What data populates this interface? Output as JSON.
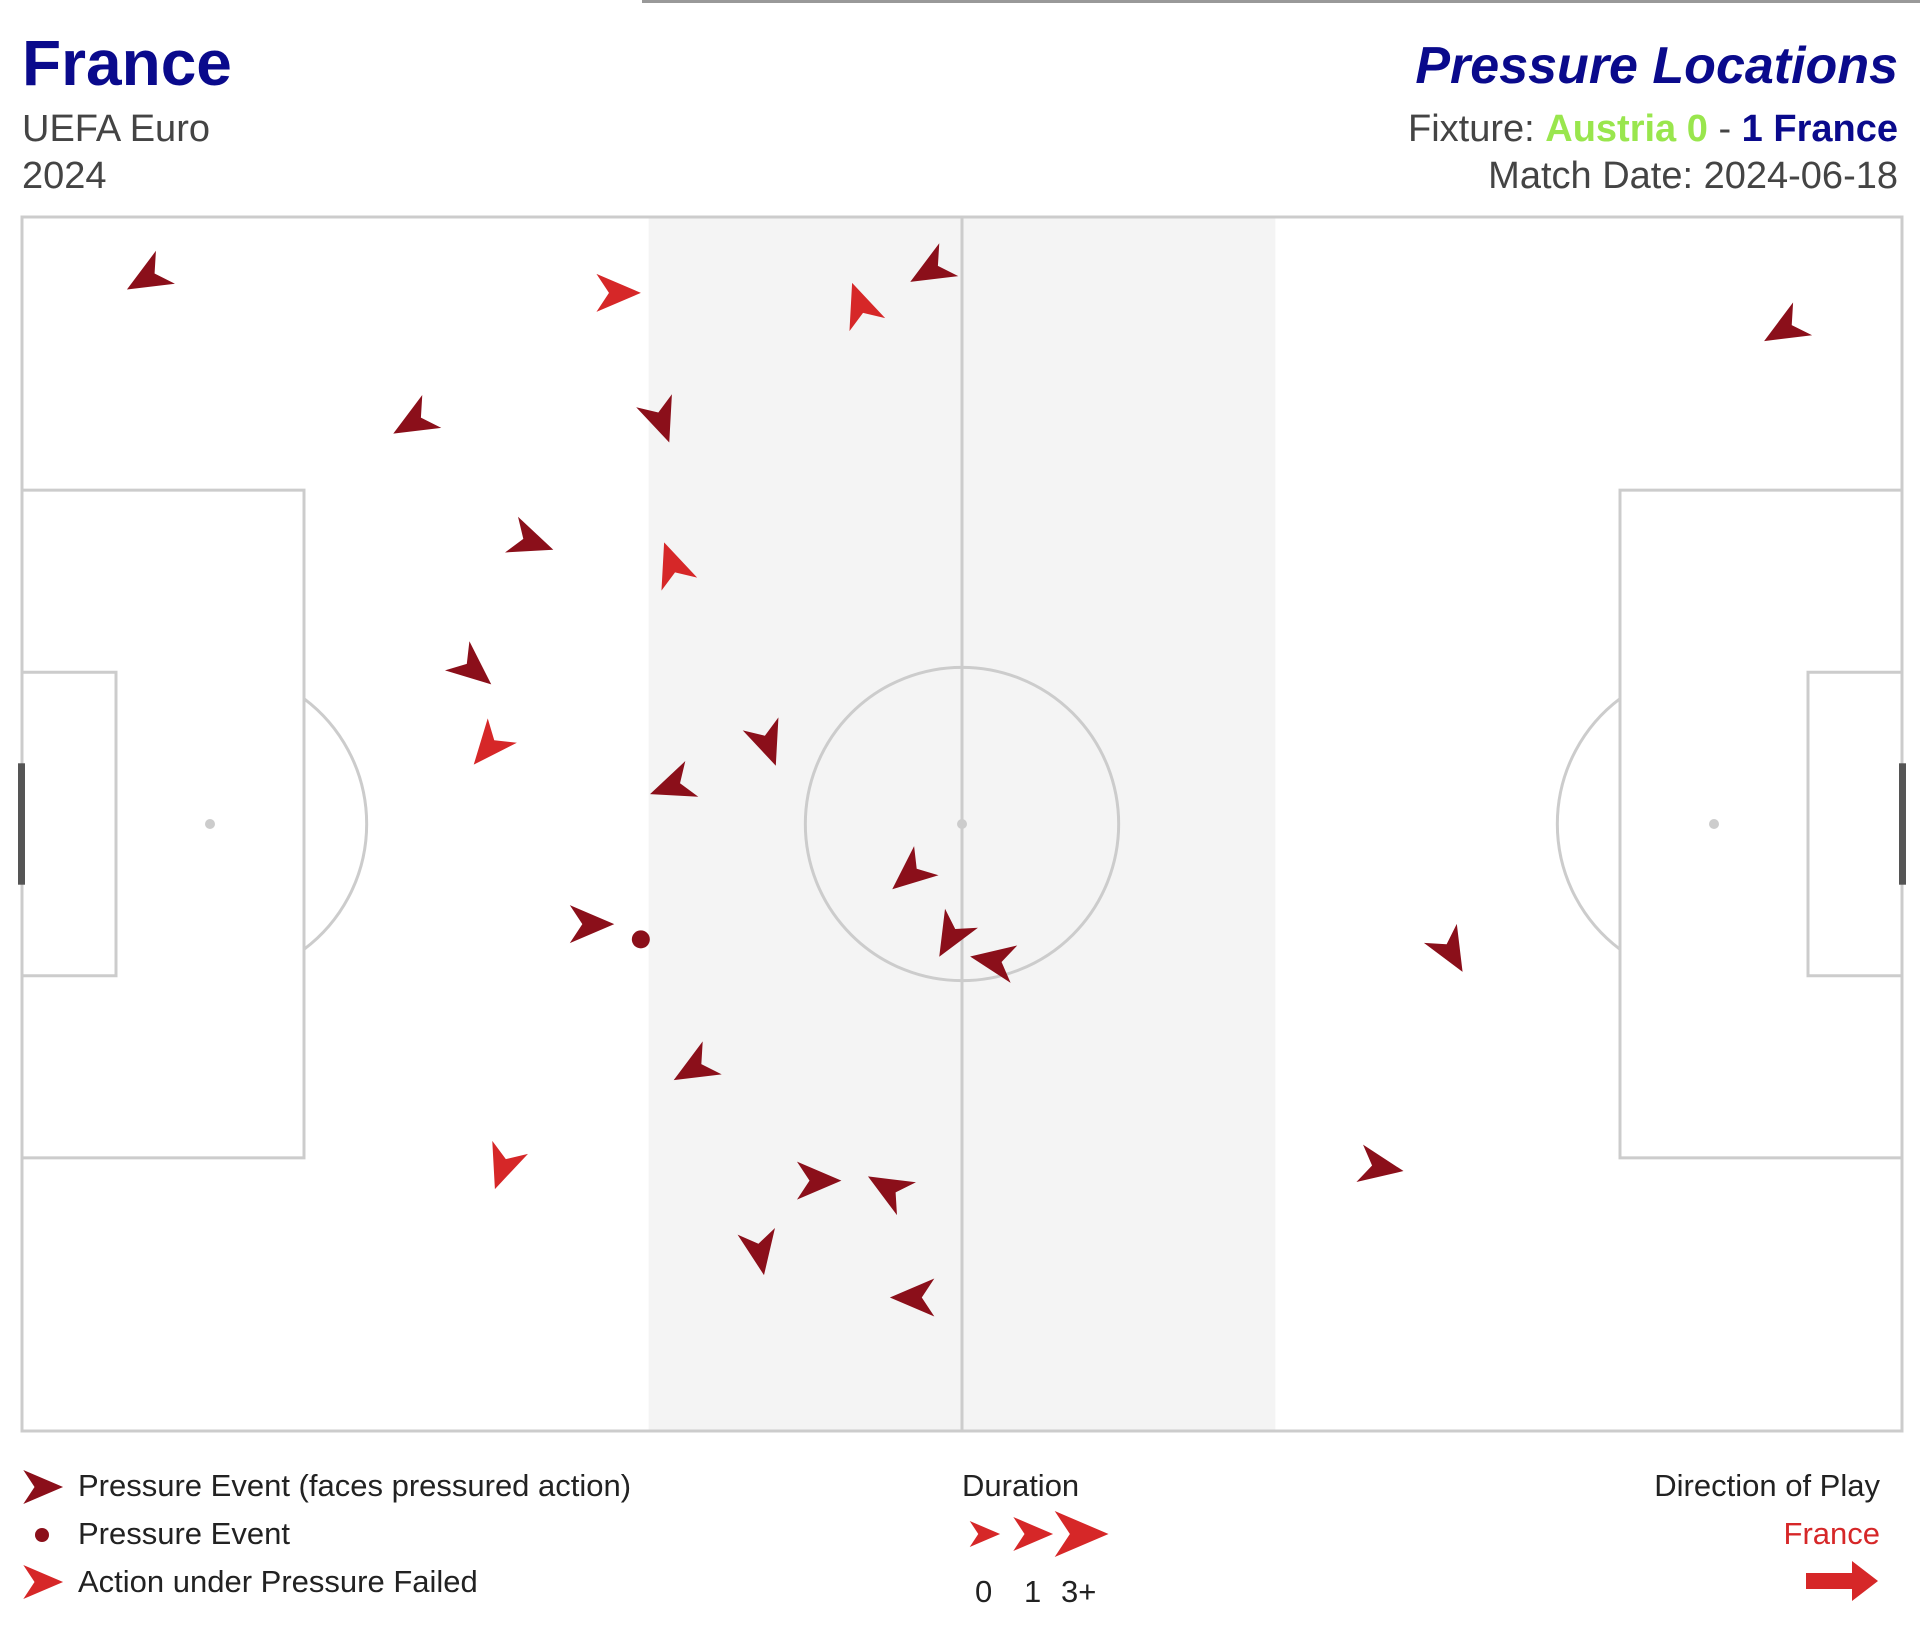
{
  "header": {
    "team": "France",
    "competition": "UEFA Euro",
    "season": "2024",
    "plot_title": "Pressure Locations",
    "fixture_label": "Fixture:",
    "home_team": "Austria",
    "home_score": "0",
    "separator": "-",
    "away_score": "1",
    "away_team": "France",
    "match_date_label": "Match Date:",
    "match_date": "2024-06-18"
  },
  "colors": {
    "team_title": "#0a0a8c",
    "home": "#99e64d",
    "pressure_event": "#8b0f1a",
    "action_failed": "#d62728",
    "pitch_lines": "#cccccc",
    "shaded_band": "#f4f4f4"
  },
  "legend": {
    "items": [
      {
        "label": "Pressure Event (faces pressured action)",
        "icon": "dark-red-arrowhead"
      },
      {
        "label": "Pressure Event",
        "icon": "dark-red-dot"
      },
      {
        "label": "Action under Pressure Failed",
        "icon": "red-arrowhead"
      }
    ],
    "duration_title": "Duration",
    "duration_ticks": [
      "0",
      "1",
      "3+"
    ],
    "direction_title": "Direction of Play",
    "direction_team": "France"
  },
  "chart_data": {
    "type": "scatter",
    "pitch": {
      "length": 120,
      "width": 80,
      "shaded_band_x": [
        40,
        80
      ]
    },
    "events": [
      {
        "x": 8,
        "y": 4,
        "angle": 150,
        "failed": false
      },
      {
        "x": 38,
        "y": 5,
        "angle": 0,
        "failed": true
      },
      {
        "x": 58,
        "y": 3.5,
        "angle": 150,
        "failed": false
      },
      {
        "x": 53.5,
        "y": 5.8,
        "angle": 250,
        "failed": true
      },
      {
        "x": 112.5,
        "y": 7.4,
        "angle": 150,
        "failed": false
      },
      {
        "x": 25,
        "y": 13.5,
        "angle": 150,
        "failed": false
      },
      {
        "x": 40.8,
        "y": 13.4,
        "angle": 70,
        "failed": false
      },
      {
        "x": 32.5,
        "y": 21.4,
        "angle": 20,
        "failed": false
      },
      {
        "x": 41.5,
        "y": 22.9,
        "angle": 250,
        "failed": true
      },
      {
        "x": 28.8,
        "y": 29.8,
        "angle": 40,
        "failed": false
      },
      {
        "x": 29.8,
        "y": 34.9,
        "angle": 130,
        "failed": true
      },
      {
        "x": 47.6,
        "y": 34.7,
        "angle": 70,
        "failed": false
      },
      {
        "x": 41.5,
        "y": 37.5,
        "angle": 160,
        "failed": false
      },
      {
        "x": 56.7,
        "y": 43.3,
        "angle": 140,
        "failed": false
      },
      {
        "x": 59.3,
        "y": 47.4,
        "angle": 120,
        "failed": false
      },
      {
        "x": 62,
        "y": 49,
        "angle": 190,
        "failed": false
      },
      {
        "x": 36.3,
        "y": 46.6,
        "angle": 0,
        "failed": false
      },
      {
        "x": 39.5,
        "y": 47.6,
        "dot": true,
        "failed": false
      },
      {
        "x": 42.9,
        "y": 56.1,
        "angle": 150,
        "failed": false
      },
      {
        "x": 91.2,
        "y": 48.4,
        "angle": 60,
        "failed": false
      },
      {
        "x": 30.7,
        "y": 62.6,
        "angle": 110,
        "failed": true
      },
      {
        "x": 50.8,
        "y": 63.5,
        "angle": 0,
        "failed": false
      },
      {
        "x": 55.3,
        "y": 64,
        "angle": 210,
        "failed": false
      },
      {
        "x": 86.7,
        "y": 62.6,
        "angle": 10,
        "failed": false
      },
      {
        "x": 47.1,
        "y": 68.2,
        "angle": 80,
        "failed": false
      },
      {
        "x": 56.9,
        "y": 71.2,
        "angle": 180,
        "failed": false
      }
    ]
  }
}
